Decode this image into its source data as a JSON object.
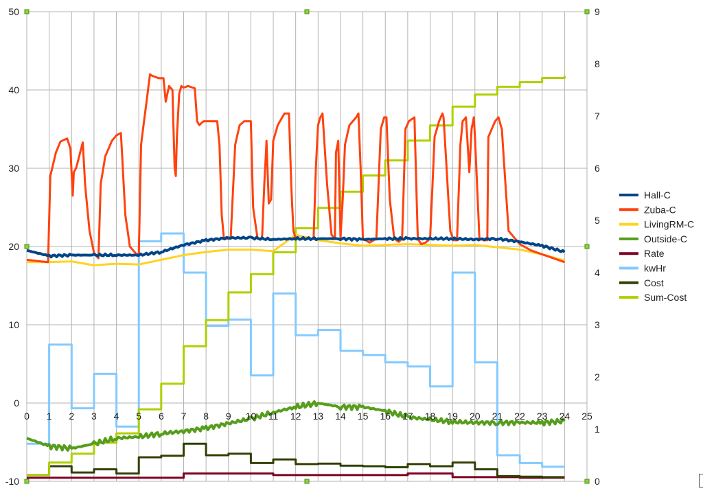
{
  "chart_data": {
    "type": "line",
    "title": "",
    "xlabel": "",
    "ylabel": "",
    "xlim": [
      0,
      25
    ],
    "ylim": [
      -10,
      50
    ],
    "y2lim": [
      0,
      9
    ],
    "x_ticks": [
      "0",
      "1",
      "2",
      "3",
      "4",
      "5",
      "6",
      "7",
      "8",
      "9",
      "10",
      "11",
      "12",
      "13",
      "14",
      "15",
      "16",
      "17",
      "18",
      "19",
      "20",
      "21",
      "22",
      "23",
      "24",
      "25"
    ],
    "y_ticks": [
      "-10",
      "0",
      "10",
      "20",
      "30",
      "40",
      "50"
    ],
    "y2_ticks": [
      "0",
      "1",
      "2",
      "3",
      "4",
      "5",
      "6",
      "7",
      "8",
      "9"
    ],
    "grid": true,
    "legend_position": "right",
    "series": [
      {
        "name": "Hall-C",
        "axis": "left",
        "color": "#004586",
        "x": [
          0,
          1,
          2,
          3,
          4,
          5,
          6,
          7,
          8,
          9,
          10,
          11,
          12,
          13,
          14,
          15,
          16,
          17,
          18,
          19,
          20,
          21,
          22,
          23,
          24
        ],
        "values": [
          19.5,
          18.8,
          18.9,
          18.9,
          18.9,
          18.9,
          19.3,
          20.2,
          20.8,
          21.1,
          21.1,
          20.9,
          21.0,
          21.0,
          21.0,
          20.9,
          21.0,
          21.0,
          21.0,
          21.0,
          20.9,
          21.0,
          20.6,
          20.1,
          19.3
        ]
      },
      {
        "name": "Zuba-C",
        "axis": "left",
        "color": "#ff420e",
        "x": [
          0,
          0.95,
          1.05,
          1.3,
          1.5,
          1.8,
          1.95,
          2.05,
          2.1,
          2.2,
          2.5,
          2.6,
          2.8,
          3.0,
          3.2,
          3.3,
          3.5,
          3.8,
          4.0,
          4.2,
          4.4,
          4.6,
          4.9,
          5.0,
          5.1,
          5.3,
          5.5,
          5.6,
          5.9,
          6.1,
          6.2,
          6.35,
          6.5,
          6.6,
          6.65,
          6.7,
          6.8,
          6.9,
          7.0,
          7.2,
          7.5,
          7.6,
          7.7,
          7.8,
          7.9,
          8.1,
          8.5,
          8.6,
          8.7,
          8.8,
          8.9,
          9.1,
          9.3,
          9.5,
          9.7,
          9.9,
          10.0,
          10.1,
          10.3,
          10.5,
          10.6,
          10.7,
          10.8,
          10.9,
          11.0,
          11.2,
          11.5,
          11.7,
          11.8,
          11.9,
          12.0,
          12.3,
          12.8,
          12.9,
          13.0,
          13.1,
          13.2,
          13.4,
          13.6,
          13.75,
          13.8,
          13.9,
          14.0,
          14.1,
          14.2,
          14.4,
          14.7,
          14.8,
          14.9,
          15.0,
          15.3,
          15.6,
          15.8,
          15.95,
          16.05,
          16.2,
          16.4,
          16.6,
          16.75,
          16.9,
          17.05,
          17.3,
          17.45,
          17.6,
          17.8,
          18.0,
          18.2,
          18.4,
          18.55,
          18.6,
          18.9,
          19.05,
          19.2,
          19.35,
          19.45,
          19.6,
          19.75,
          19.85,
          19.95,
          20.0,
          20.2,
          20.4,
          20.55,
          20.6,
          20.9,
          21.05,
          21.2,
          21.5,
          22.0,
          22.5,
          23.0,
          23.5,
          24.0
        ],
        "values": [
          18.3,
          18.0,
          29.0,
          32.0,
          33.4,
          33.8,
          32.5,
          26.5,
          29.5,
          30.0,
          33.3,
          28.0,
          22.0,
          19.2,
          18.5,
          28.0,
          31.5,
          33.5,
          34.2,
          34.5,
          24.0,
          20.0,
          19.0,
          19.0,
          33.0,
          37.5,
          42.0,
          41.8,
          41.5,
          41.5,
          38.5,
          40.5,
          40.0,
          30.0,
          29.0,
          34.0,
          39.5,
          40.5,
          40.3,
          40.5,
          40.2,
          36.0,
          35.5,
          35.8,
          36.0,
          36.0,
          36.0,
          33.0,
          24.0,
          21.0,
          21.0,
          21.0,
          33.0,
          35.5,
          36.0,
          36.0,
          36.0,
          25.0,
          21.0,
          21.0,
          28.0,
          33.5,
          25.5,
          26.0,
          33.5,
          35.5,
          37.0,
          37.0,
          28.0,
          22.0,
          21.0,
          21.0,
          21.0,
          30.0,
          35.5,
          36.5,
          37.0,
          28.0,
          21.5,
          21.0,
          32.0,
          33.5,
          21.0,
          26.0,
          33.0,
          35.5,
          36.5,
          37.0,
          30.0,
          21.0,
          20.5,
          21.0,
          35.0,
          36.5,
          36.5,
          26.0,
          21.0,
          20.6,
          21.0,
          35.0,
          36.0,
          36.5,
          21.0,
          20.3,
          20.5,
          21.0,
          34.0,
          36.0,
          37.0,
          36.5,
          22.0,
          20.8,
          20.8,
          33.0,
          36.0,
          36.5,
          29.5,
          35.0,
          36.5,
          34.0,
          21.0,
          20.8,
          20.8,
          34.0,
          36.0,
          36.5,
          35.0,
          22.0,
          20.3,
          19.5,
          19.0,
          18.5,
          18.0
        ]
      },
      {
        "name": "LivingRM-C",
        "axis": "left",
        "color": "#ffd320",
        "x": [
          0,
          1,
          2,
          3,
          4,
          5,
          6,
          7,
          8,
          9,
          10,
          11,
          12,
          13,
          14,
          15,
          16,
          17,
          18,
          19,
          20,
          21,
          22,
          23,
          24
        ],
        "values": [
          18.0,
          18.0,
          18.1,
          17.6,
          17.8,
          17.7,
          18.3,
          18.9,
          19.3,
          19.6,
          19.6,
          19.4,
          21.5,
          20.8,
          20.4,
          20.1,
          20.2,
          20.3,
          20.2,
          20.1,
          20.2,
          19.9,
          19.6,
          19.0,
          18.2
        ]
      },
      {
        "name": "Outside-C",
        "axis": "left",
        "color": "#579d1c",
        "x": [
          0,
          1,
          2,
          3,
          4,
          5,
          6,
          7,
          8,
          9,
          10,
          11,
          12,
          13,
          14,
          15,
          16,
          17,
          18,
          19,
          20,
          21,
          22,
          23,
          24
        ],
        "values": [
          -4.5,
          -5.5,
          -5.8,
          -5.2,
          -4.5,
          -4.3,
          -3.9,
          -3.6,
          -3.2,
          -2.6,
          -2.0,
          -1.2,
          -0.5,
          0.0,
          -0.5,
          -0.5,
          -1.0,
          -1.8,
          -2.1,
          -2.4,
          -2.5,
          -2.5,
          -2.5,
          -2.5,
          -2.3
        ]
      },
      {
        "name": "Rate",
        "axis": "right",
        "color": "#7e0021",
        "step": true,
        "x": [
          0,
          1,
          2,
          3,
          4,
          5,
          6,
          7,
          8,
          9,
          10,
          11,
          12,
          13,
          14,
          15,
          16,
          17,
          18,
          19,
          20,
          21,
          22,
          23,
          24
        ],
        "values": [
          0.07,
          0.07,
          0.07,
          0.07,
          0.07,
          0.07,
          0.07,
          0.15,
          0.15,
          0.15,
          0.15,
          0.12,
          0.12,
          0.12,
          0.12,
          0.12,
          0.12,
          0.15,
          0.15,
          0.08,
          0.08,
          0.08,
          0.07,
          0.07,
          0.07
        ]
      },
      {
        "name": "kwHr",
        "axis": "right",
        "color": "#83caff",
        "step": true,
        "x": [
          0,
          1,
          2,
          3,
          4,
          5,
          6,
          7,
          8,
          9,
          10,
          11,
          12,
          13,
          14,
          15,
          16,
          17,
          18,
          19,
          20,
          21,
          22,
          23,
          24
        ],
        "values": [
          0.72,
          2.62,
          1.4,
          2.06,
          1.05,
          4.6,
          4.75,
          4.0,
          2.98,
          3.1,
          2.03,
          3.6,
          2.8,
          2.9,
          2.5,
          2.42,
          2.28,
          2.2,
          1.82,
          4.0,
          2.28,
          0.5,
          0.35,
          0.28,
          0.28
        ]
      },
      {
        "name": "Cost",
        "axis": "right",
        "color": "#314004",
        "step": true,
        "x": [
          0,
          1,
          2,
          3,
          4,
          5,
          6,
          7,
          8,
          9,
          10,
          11,
          12,
          13,
          14,
          15,
          16,
          17,
          18,
          19,
          20,
          21,
          22,
          23,
          24
        ],
        "values": [
          0.12,
          0.29,
          0.17,
          0.23,
          0.15,
          0.46,
          0.49,
          0.72,
          0.5,
          0.53,
          0.35,
          0.42,
          0.33,
          0.34,
          0.3,
          0.29,
          0.27,
          0.33,
          0.29,
          0.36,
          0.23,
          0.1,
          0.09,
          0.08,
          0.08
        ]
      },
      {
        "name": "Sum-Cost",
        "axis": "right",
        "color": "#aecf00",
        "step": true,
        "x": [
          0,
          1,
          2,
          3,
          4,
          5,
          6,
          7,
          8,
          9,
          10,
          11,
          12,
          13,
          14,
          15,
          16,
          17,
          18,
          19,
          20,
          21,
          22,
          23,
          24
        ],
        "values": [
          0.12,
          0.36,
          0.53,
          0.74,
          0.92,
          1.38,
          1.87,
          2.59,
          3.09,
          3.62,
          3.97,
          4.39,
          4.85,
          5.24,
          5.55,
          5.86,
          6.15,
          6.53,
          6.82,
          7.18,
          7.41,
          7.56,
          7.65,
          7.73,
          7.77
        ]
      }
    ]
  },
  "legend": {
    "items": [
      {
        "label": "Hall-C",
        "color": "#004586"
      },
      {
        "label": "Zuba-C",
        "color": "#ff420e"
      },
      {
        "label": "LivingRM-C",
        "color": "#ffd320"
      },
      {
        "label": "Outside-C",
        "color": "#579d1c"
      },
      {
        "label": "Rate",
        "color": "#7e0021"
      },
      {
        "label": "kwHr",
        "color": "#83caff"
      },
      {
        "label": "Cost",
        "color": "#314004"
      },
      {
        "label": "Sum-Cost",
        "color": "#aecf00"
      }
    ]
  }
}
